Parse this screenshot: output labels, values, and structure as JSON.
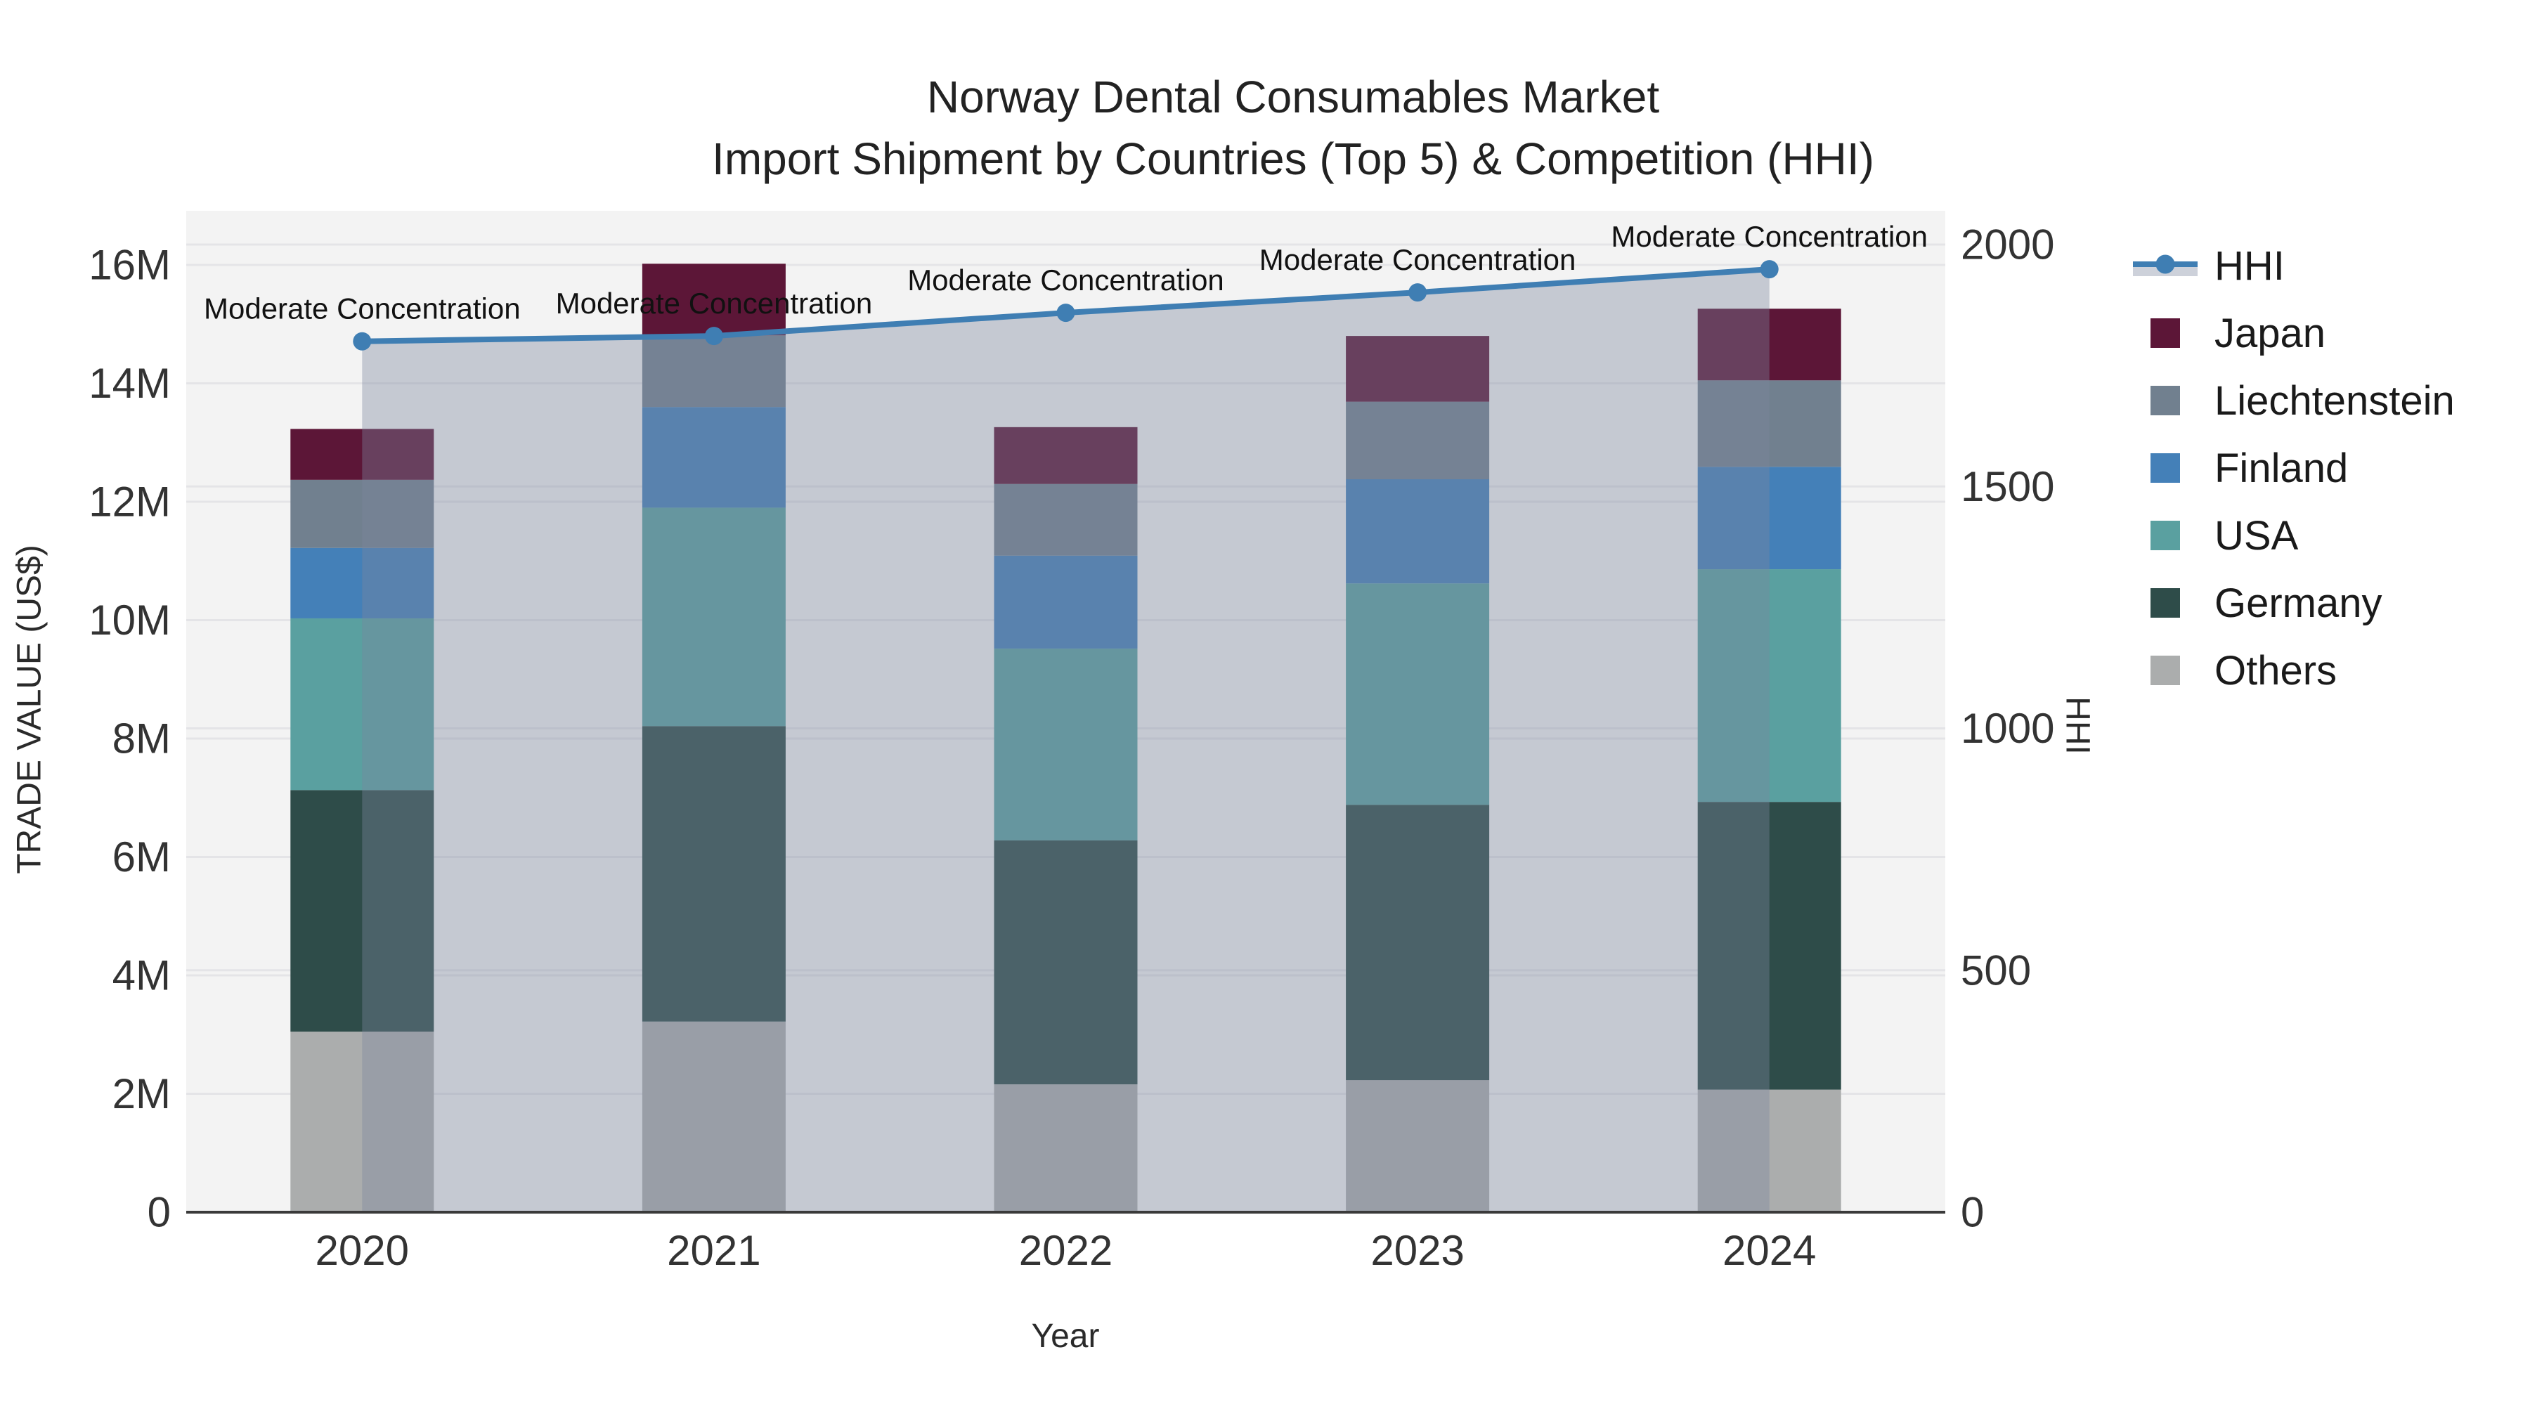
{
  "title": {
    "line1": "Norway Dental Consumables Market",
    "line2": "Import Shipment by Countries (Top 5) & Competition (HHI)"
  },
  "axes": {
    "x_title": "Year",
    "y_left_title": "TRADE VALUE (US$)",
    "y_right_title": "HHI",
    "x_tick_labels": [
      "2020",
      "2021",
      "2022",
      "2023",
      "2024"
    ],
    "y_left_tick_labels": [
      "0",
      "2M",
      "4M",
      "6M",
      "8M",
      "10M",
      "12M",
      "14M",
      "16M"
    ],
    "y_left_tick_values_millions": [
      0,
      2,
      4,
      6,
      8,
      10,
      12,
      14,
      16
    ],
    "y_right_tick_labels": [
      "0",
      "500",
      "1000",
      "1500",
      "2000"
    ],
    "y_right_tick_values": [
      0,
      500,
      1000,
      1500,
      2000
    ]
  },
  "legend": {
    "position": "right",
    "items": [
      {
        "label": "HHI",
        "type": "line",
        "color": "#3f7eb3"
      },
      {
        "label": "Japan",
        "type": "square",
        "color": "#5c1637"
      },
      {
        "label": "Liechtenstein",
        "type": "square",
        "color": "#71808f"
      },
      {
        "label": "Finland",
        "type": "square",
        "color": "#4480b8"
      },
      {
        "label": "USA",
        "type": "square",
        "color": "#5aa0a0"
      },
      {
        "label": "Germany",
        "type": "square",
        "color": "#2e4c49"
      },
      {
        "label": "Others",
        "type": "square",
        "color": "#abadad"
      }
    ]
  },
  "chart_data": {
    "type": "combo_stacked_bar_line",
    "title": "Norway Dental Consumables Market — Import Shipment by Countries (Top 5) & Competition (HHI)",
    "categories": [
      2020,
      2021,
      2022,
      2023,
      2024
    ],
    "bar_value_unit": "USD millions",
    "stack_order_bottom_to_top": [
      "Others",
      "Germany",
      "USA",
      "Finland",
      "Liechtenstein",
      "Japan"
    ],
    "series": [
      {
        "name": "Others",
        "color": "#abadad",
        "values_millions": [
          3.05,
          3.22,
          2.16,
          2.23,
          2.07
        ]
      },
      {
        "name": "Germany",
        "color": "#2e4c49",
        "values_millions": [
          4.08,
          4.99,
          4.12,
          4.65,
          4.86
        ]
      },
      {
        "name": "USA",
        "color": "#5aa0a0",
        "values_millions": [
          2.9,
          3.69,
          3.24,
          3.74,
          3.93
        ]
      },
      {
        "name": "Finland",
        "color": "#4480b8",
        "values_millions": [
          1.19,
          1.7,
          1.57,
          1.76,
          1.73
        ]
      },
      {
        "name": "Liechtenstein",
        "color": "#71808f",
        "values_millions": [
          1.15,
          1.21,
          1.21,
          1.31,
          1.46
        ]
      },
      {
        "name": "Japan",
        "color": "#5c1637",
        "values_millions": [
          0.86,
          1.21,
          0.96,
          1.11,
          1.21
        ]
      }
    ],
    "bar_totals_millions": [
      13.23,
      16.02,
      13.26,
      14.8,
      15.26
    ],
    "line_series": {
      "name": "HHI",
      "axis": "right",
      "color": "#3f7eb3",
      "area_fill": "rgba(124,135,158,0.38)",
      "values": [
        1800,
        1811,
        1859,
        1901,
        1949
      ]
    },
    "annotations": [
      "Moderate Concentration",
      "Moderate Concentration",
      "Moderate Concentration",
      "Moderate Concentration",
      "Moderate Concentration"
    ],
    "xlabel": "Year",
    "ylabel_left": "TRADE VALUE (US$)",
    "ylabel_right": "HHI",
    "y_left_range_millions": [
      0,
      16.9
    ],
    "y_right_range": [
      0,
      2070
    ],
    "grid": true,
    "legend_position": "right",
    "colors": {
      "plot_background": "#f3f3f3",
      "gridline": "#e4e4e7",
      "axis_line": "#3a3a3a",
      "tick_text": "#333333",
      "annotation_text": "#111111"
    }
  }
}
